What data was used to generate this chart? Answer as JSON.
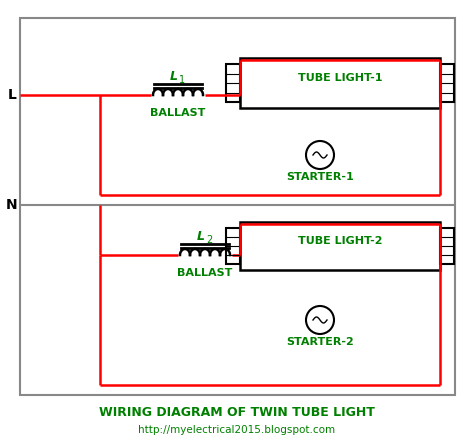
{
  "title": "WIRING DIAGRAM OF TWIN TUBE LIGHT",
  "url": "http://myelectrical2015.blogspot.com",
  "bg_color": "#ffffff",
  "red": "#ff0000",
  "black": "#000000",
  "gray": "#888888",
  "green": "#008000",
  "L_label": "L",
  "N_label": "N",
  "L1_label": "L",
  "L1_sub": "1",
  "L2_label": "L",
  "L2_sub": "2",
  "ballast1_label": "BALLAST",
  "ballast2_label": "BALLAST",
  "tube1_label": "TUBE LIGHT-1",
  "tube2_label": "TUBE LIGHT-2",
  "starter1_label": "STARTER-1",
  "starter2_label": "STARTER-2"
}
